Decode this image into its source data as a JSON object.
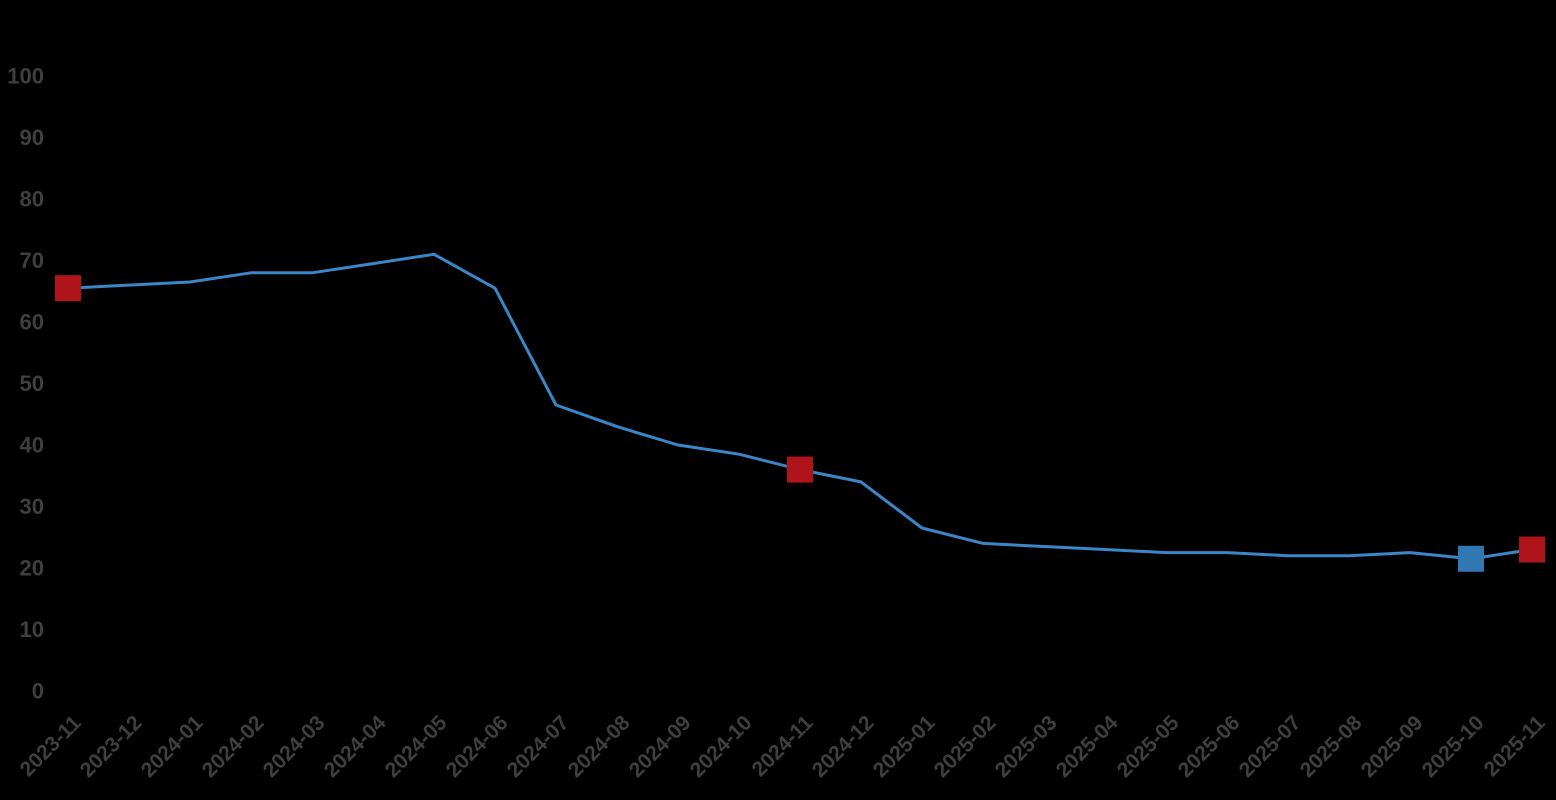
{
  "chart_data": {
    "type": "line",
    "title": "",
    "xlabel": "",
    "ylabel": "",
    "x_categories": [
      "2023-11",
      "2023-12",
      "2024-01",
      "2024-02",
      "2024-03",
      "2024-04",
      "2024-05",
      "2024-06",
      "2024-07",
      "2024-08",
      "2024-09",
      "2024-10",
      "2024-11",
      "2024-12",
      "2025-01",
      "2025-02",
      "2025-03",
      "2025-04",
      "2025-05",
      "2025-06",
      "2025-07",
      "2025-08",
      "2025-09",
      "2025-10",
      "2025-11"
    ],
    "series": [
      {
        "name": "main-series",
        "values": [
          65.5,
          66,
          66.5,
          68,
          68,
          69.5,
          71,
          65.5,
          46.5,
          43,
          40,
          38.5,
          36,
          34,
          26.5,
          24,
          23.5,
          23,
          22.5,
          22.5,
          22,
          22,
          22.5,
          21.5,
          23
        ]
      }
    ],
    "ylim": [
      0,
      100
    ],
    "yticks": [
      0,
      10,
      20,
      30,
      40,
      50,
      60,
      70,
      80,
      90,
      100
    ],
    "grid": false,
    "legend_position": "none",
    "markers": [
      {
        "category": "2023-11",
        "index": 0,
        "value": 65.5,
        "color": "#ae141a",
        "shape": "square"
      },
      {
        "category": "2024-11",
        "index": 12,
        "value": 36,
        "color": "#ae141a",
        "shape": "square"
      },
      {
        "category": "2025-10",
        "index": 23,
        "value": 21.5,
        "color": "#3177b3",
        "shape": "square"
      },
      {
        "category": "2025-11",
        "index": 24,
        "value": 23,
        "color": "#ae141a",
        "shape": "square"
      }
    ],
    "colors": {
      "line": "#3a86c6",
      "marker_red": "#ae141a",
      "marker_blue": "#3177b3",
      "tick_text": "#3f3f3f",
      "background": "#000000"
    }
  }
}
